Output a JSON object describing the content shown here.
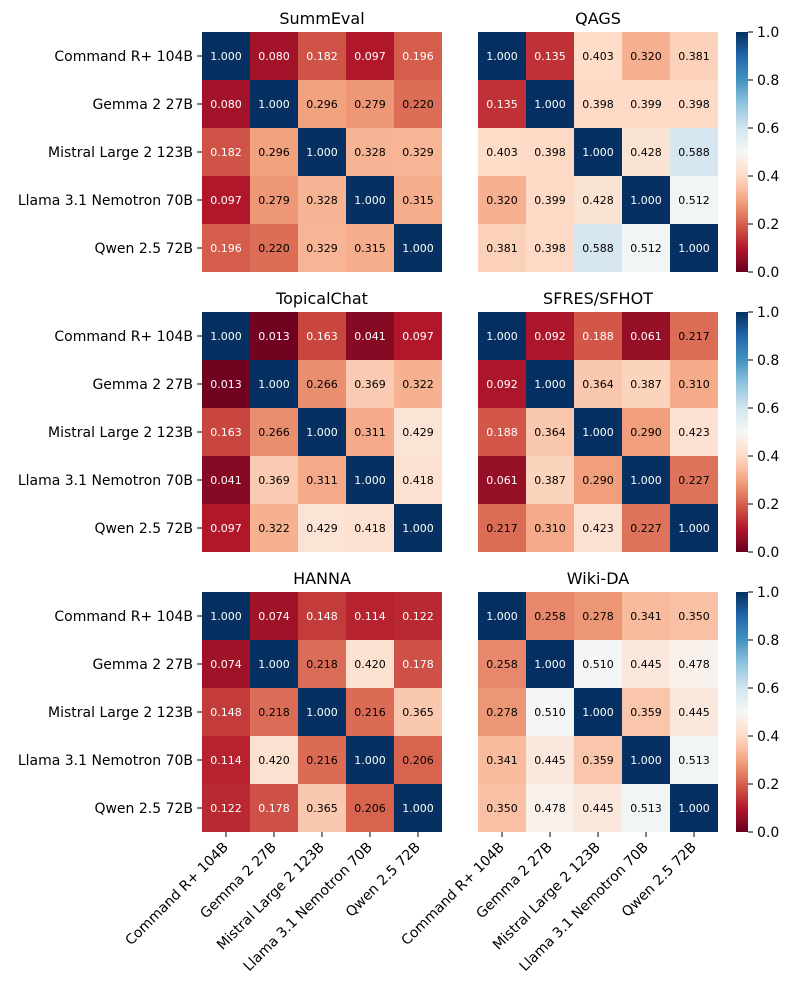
{
  "chart_data": {
    "type": "heatmap",
    "models": [
      "Command R+ 104B",
      "Gemma 2 27B",
      "Mistral Large 2 123B",
      "Llama 3.1 Nemotron 70B",
      "Qwen 2.5 72B"
    ],
    "colormap": {
      "name": "RdBu",
      "vmin": 0.0,
      "vmax": 1.0,
      "stops": [
        "#67001f",
        "#b2182b",
        "#d6604d",
        "#f4a582",
        "#fddbc7",
        "#f7f7f7",
        "#d1e5f0",
        "#92c5de",
        "#4393c3",
        "#2166ac",
        "#053061"
      ],
      "ticks": [
        "0.0",
        "0.2",
        "0.4",
        "0.6",
        "0.8",
        "1.0"
      ]
    },
    "panels": [
      {
        "title": "SummEval",
        "matrix": [
          [
            1.0,
            0.08,
            0.182,
            0.097,
            0.196
          ],
          [
            0.08,
            1.0,
            0.296,
            0.279,
            0.22
          ],
          [
            0.182,
            0.296,
            1.0,
            0.328,
            0.329
          ],
          [
            0.097,
            0.279,
            0.328,
            1.0,
            0.315
          ],
          [
            0.196,
            0.22,
            0.329,
            0.315,
            1.0
          ]
        ]
      },
      {
        "title": "QAGS",
        "matrix": [
          [
            1.0,
            0.135,
            0.403,
            0.32,
            0.381
          ],
          [
            0.135,
            1.0,
            0.398,
            0.399,
            0.398
          ],
          [
            0.403,
            0.398,
            1.0,
            0.428,
            0.588
          ],
          [
            0.32,
            0.399,
            0.428,
            1.0,
            0.512
          ],
          [
            0.381,
            0.398,
            0.588,
            0.512,
            1.0
          ]
        ]
      },
      {
        "title": "TopicalChat",
        "matrix": [
          [
            1.0,
            0.013,
            0.163,
            0.041,
            0.097
          ],
          [
            0.013,
            1.0,
            0.266,
            0.369,
            0.322
          ],
          [
            0.163,
            0.266,
            1.0,
            0.311,
            0.429
          ],
          [
            0.041,
            0.369,
            0.311,
            1.0,
            0.418
          ],
          [
            0.097,
            0.322,
            0.429,
            0.418,
            1.0
          ]
        ]
      },
      {
        "title": "SFRES/SFHOT",
        "matrix": [
          [
            1.0,
            0.092,
            0.188,
            0.061,
            0.217
          ],
          [
            0.092,
            1.0,
            0.364,
            0.387,
            0.31
          ],
          [
            0.188,
            0.364,
            1.0,
            0.29,
            0.423
          ],
          [
            0.061,
            0.387,
            0.29,
            1.0,
            0.227
          ],
          [
            0.217,
            0.31,
            0.423,
            0.227,
            1.0
          ]
        ]
      },
      {
        "title": "HANNA",
        "matrix": [
          [
            1.0,
            0.074,
            0.148,
            0.114,
            0.122
          ],
          [
            0.074,
            1.0,
            0.218,
            0.42,
            0.178
          ],
          [
            0.148,
            0.218,
            1.0,
            0.216,
            0.365
          ],
          [
            0.114,
            0.42,
            0.216,
            1.0,
            0.206
          ],
          [
            0.122,
            0.178,
            0.365,
            0.206,
            1.0
          ]
        ]
      },
      {
        "title": "Wiki-DA",
        "matrix": [
          [
            1.0,
            0.258,
            0.278,
            0.341,
            0.35
          ],
          [
            0.258,
            1.0,
            0.51,
            0.445,
            0.478
          ],
          [
            0.278,
            0.51,
            1.0,
            0.359,
            0.445
          ],
          [
            0.341,
            0.445,
            0.359,
            1.0,
            0.513
          ],
          [
            0.35,
            0.478,
            0.445,
            0.513,
            1.0
          ]
        ]
      }
    ]
  }
}
